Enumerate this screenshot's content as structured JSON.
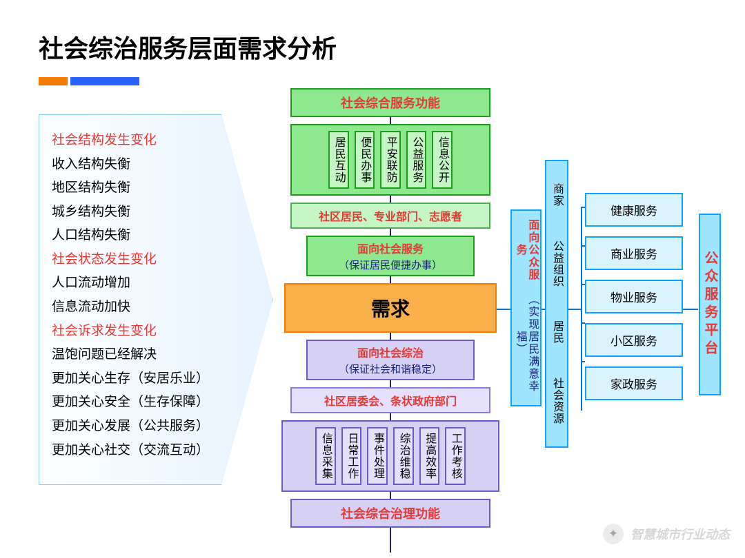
{
  "title": "社会综治服务层面需求分析",
  "colors": {
    "accent1": "#f57c00",
    "accent2": "#2962ff",
    "green": "#8ee88e",
    "green_border": "#1b9e1b",
    "lav": "#d6d0f2",
    "lav_border": "#6a5acd",
    "orange": "#f9b04a",
    "orange_border": "#f57c00",
    "skyblue": "#9fe5ff",
    "skyblue_border": "#0aa4ff",
    "red_text": "#e53935",
    "blue_text": "#1a237e"
  },
  "left_list": [
    {
      "text": "社会结构发生变化",
      "red": true
    },
    {
      "text": "收入结构失衡",
      "red": false
    },
    {
      "text": "地区结构失衡",
      "red": false
    },
    {
      "text": "城乡结构失衡",
      "red": false
    },
    {
      "text": "人口结构失衡",
      "red": false
    },
    {
      "text": "社会状态发生变化",
      "red": true
    },
    {
      "text": "人口流动增加",
      "red": false
    },
    {
      "text": "信息流动加快",
      "red": false
    },
    {
      "text": "社会诉求发生变化",
      "red": true
    },
    {
      "text": "温饱问题已经解决",
      "red": false
    },
    {
      "text": "更加关心生存（安居乐业）",
      "red": false
    },
    {
      "text": "更加关心安全（生存保障）",
      "red": false
    },
    {
      "text": "更加关心发展（公共服务）",
      "red": false
    },
    {
      "text": "更加关心社交（交流互动）",
      "red": false
    }
  ],
  "top_header": "社会综合服务功能",
  "top_items": [
    "居民互动",
    "便民办事",
    "平安联防",
    "公益服务",
    "信息公开"
  ],
  "top_people": "社区居民、专业部门、志愿者",
  "mid_top": {
    "title": "面向社会服务",
    "sub": "（保证居民便捷办事）"
  },
  "demand": "需求",
  "mid_bot": {
    "title": "面向社会综治",
    "sub": "（保证社会和谐稳定）"
  },
  "bot_people": "社区居委会、条状政府部门",
  "bot_items": [
    "信息采集",
    "日常工作",
    "事件处理",
    "综治维稳",
    "提高效率",
    "工作考核"
  ],
  "bot_header": "社会综合治理功能",
  "right1": {
    "title": "面向公众服务",
    "sub": "（实现居民满意幸福）"
  },
  "right2_items": [
    "商家",
    "公益组织",
    "居民",
    "社会资源"
  ],
  "services": [
    "健康服务",
    "商业服务",
    "物业服务",
    "小区服务",
    "家政服务"
  ],
  "platform": "公众服务平台",
  "watermark": "智慧城市行业动态"
}
